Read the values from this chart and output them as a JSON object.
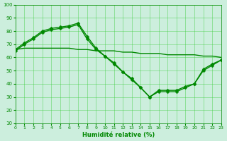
{
  "xlabel": "Humidité relative (%)",
  "xlim": [
    0,
    23
  ],
  "ylim": [
    10,
    100
  ],
  "yticks": [
    10,
    20,
    30,
    40,
    50,
    60,
    70,
    80,
    90,
    100
  ],
  "xticks": [
    0,
    1,
    2,
    3,
    4,
    5,
    6,
    7,
    8,
    9,
    10,
    11,
    12,
    13,
    14,
    15,
    16,
    17,
    18,
    19,
    20,
    21,
    22,
    23
  ],
  "line1_y": [
    66,
    71,
    75,
    80,
    82,
    83,
    84,
    86,
    76,
    67,
    61,
    55,
    49,
    44,
    37,
    30,
    35,
    35,
    35,
    38,
    40,
    51,
    55,
    58
  ],
  "line2_y": [
    65,
    70,
    74,
    79,
    81,
    82,
    83,
    85,
    74,
    66,
    61,
    56,
    49,
    43,
    37,
    30,
    34,
    34,
    34,
    37,
    40,
    50,
    54,
    58
  ],
  "line3_y": [
    66,
    67,
    67,
    67,
    67,
    67,
    67,
    66,
    66,
    65,
    65,
    65,
    64,
    64,
    63,
    63,
    63,
    62,
    62,
    62,
    62,
    61,
    61,
    60
  ],
  "bg_color": "#cceedd",
  "grid_color": "#33cc33",
  "line_color": "#008800",
  "line_width": 1.0,
  "marker": "D",
  "marker_size": 2.5
}
